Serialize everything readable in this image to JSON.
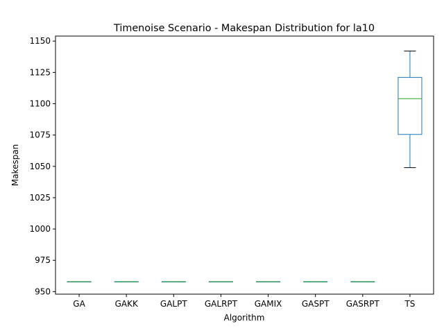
{
  "chart_data": {
    "type": "box",
    "title": "Timenoise Scenario - Makespan Distribution for la10",
    "xlabel": "Algorithm",
    "ylabel": "Makespan",
    "categories": [
      "GA",
      "GAKK",
      "GALPT",
      "GALRPT",
      "GAMIX",
      "GASPT",
      "GASRPT",
      "TS"
    ],
    "boxes": [
      {
        "name": "GA",
        "whislo": 958,
        "q1": 958,
        "med": 958,
        "q3": 958,
        "whishi": 958
      },
      {
        "name": "GAKK",
        "whislo": 958,
        "q1": 958,
        "med": 958,
        "q3": 958,
        "whishi": 958
      },
      {
        "name": "GALPT",
        "whislo": 958,
        "q1": 958,
        "med": 958,
        "q3": 958,
        "whishi": 958
      },
      {
        "name": "GALRPT",
        "whislo": 958,
        "q1": 958,
        "med": 958,
        "q3": 958,
        "whishi": 958
      },
      {
        "name": "GAMIX",
        "whislo": 958,
        "q1": 958,
        "med": 958,
        "q3": 958,
        "whishi": 958
      },
      {
        "name": "GASPT",
        "whislo": 958,
        "q1": 958,
        "med": 958,
        "q3": 958,
        "whishi": 958
      },
      {
        "name": "GASRPT",
        "whislo": 958,
        "q1": 958,
        "med": 958,
        "q3": 958,
        "whishi": 958
      },
      {
        "name": "TS",
        "whislo": 1049,
        "q1": 1075.5,
        "med": 1104,
        "q3": 1121,
        "whishi": 1142
      }
    ],
    "yticks": [
      950,
      975,
      1000,
      1025,
      1050,
      1075,
      1100,
      1125,
      1150
    ],
    "ylim": [
      948,
      1154
    ],
    "grid": false,
    "colors": {
      "box": "#1f77b4",
      "median": "#2ca02c",
      "whisker": "#1f77b4",
      "cap": "#000000",
      "axis": "#000000"
    }
  }
}
